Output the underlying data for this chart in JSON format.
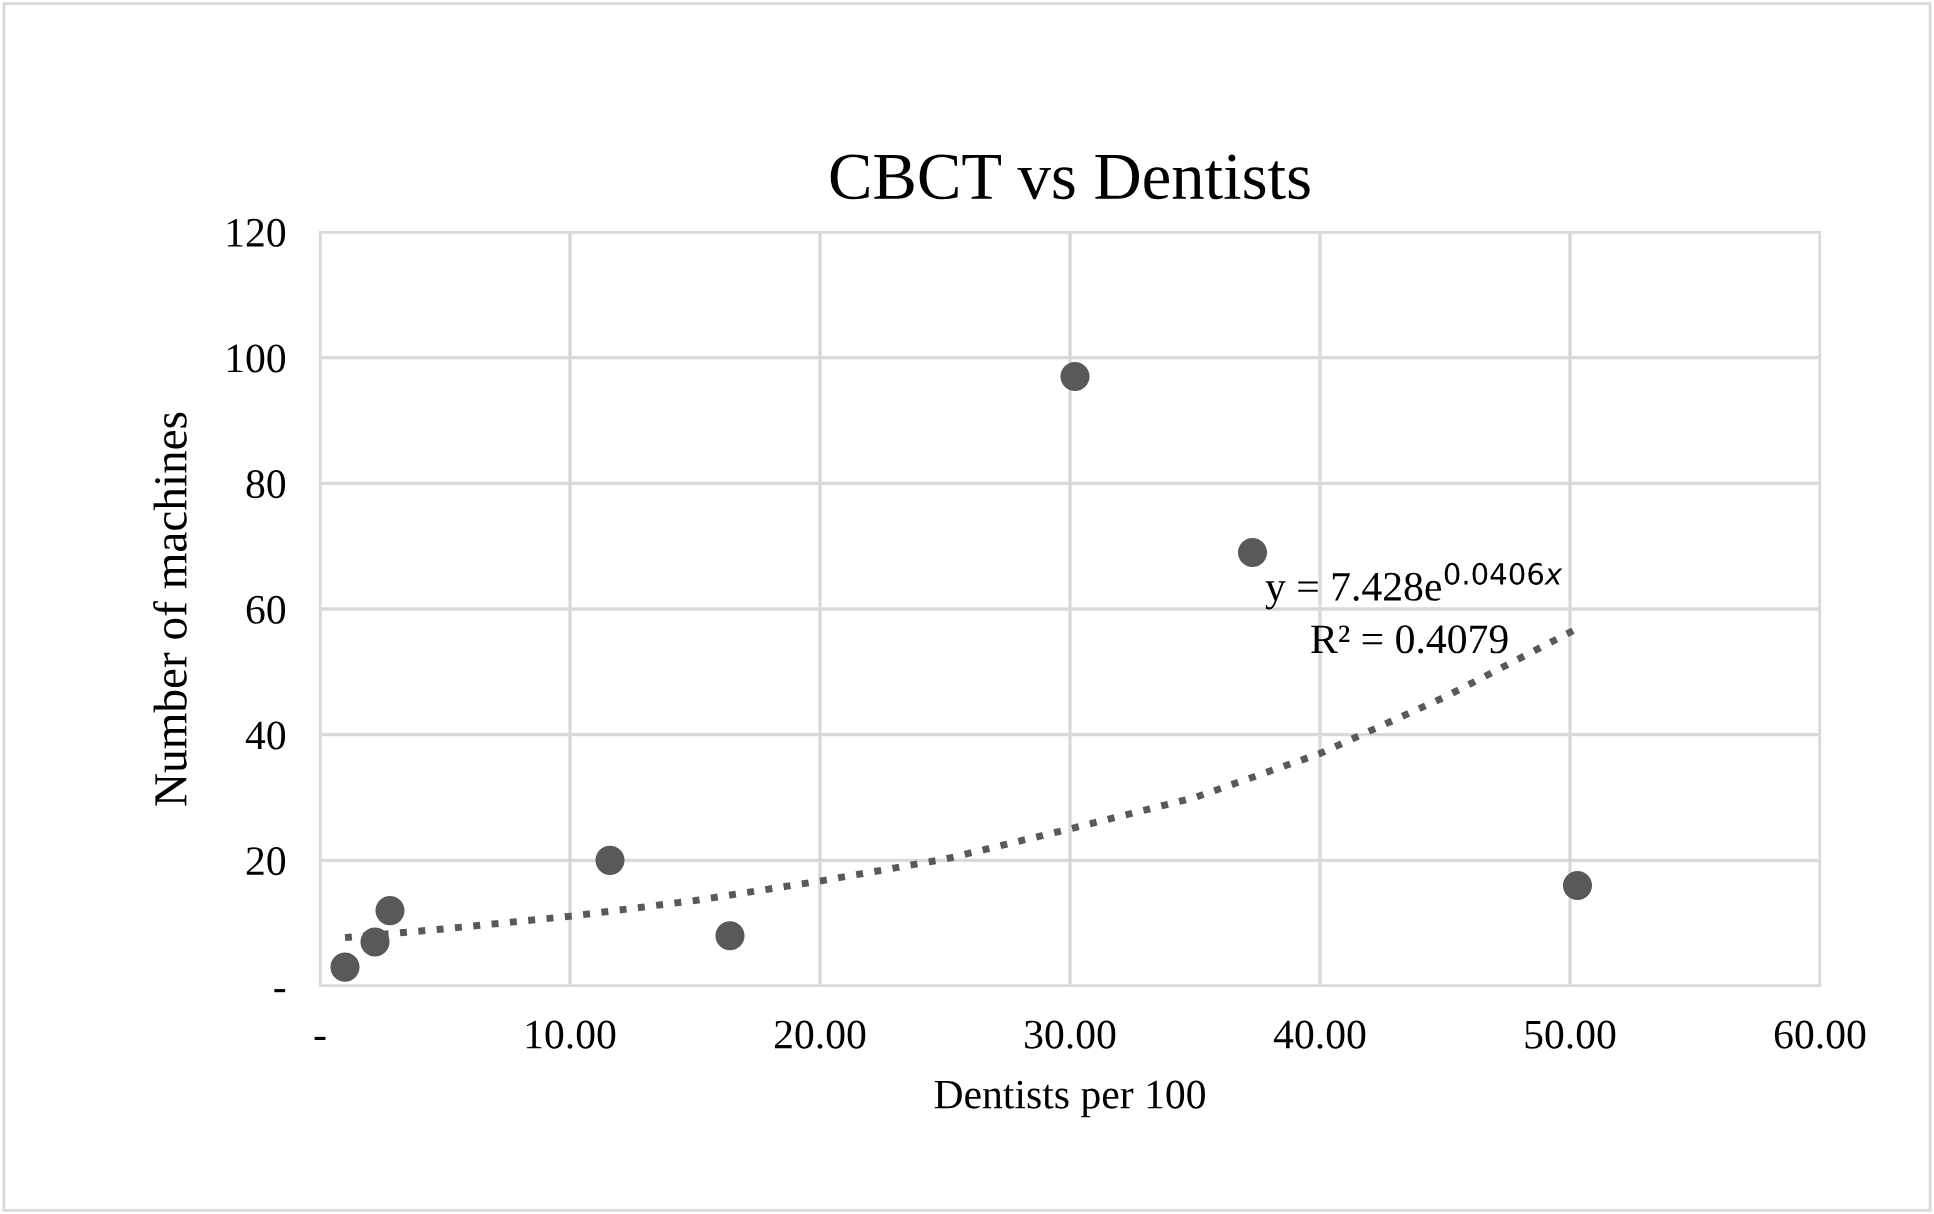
{
  "chart_data": {
    "type": "scatter",
    "title": "CBCT vs Dentists",
    "xlabel": "Dentists per 100",
    "ylabel": "Number of machines",
    "x": [
      1.0,
      2.2,
      2.8,
      11.6,
      16.4,
      30.2,
      37.3,
      50.3
    ],
    "values": [
      3,
      7,
      12,
      20,
      8,
      97,
      69,
      16
    ],
    "color": "#595959",
    "marker": "circle",
    "series": [
      {
        "type": "line",
        "x": [
          1,
          5,
          10,
          15,
          20,
          25,
          30,
          35,
          40,
          45,
          50.2
        ],
        "values": [
          7.7,
          9.1,
          11.1,
          13.6,
          16.7,
          20.2,
          25,
          30,
          37,
          46,
          56.7
        ],
        "color": "#595959",
        "line_style": "dotted",
        "marker": "none"
      }
    ],
    "annotations": [
      "y = 7.428e$^{0.0406x}$",
      "R² = 0.4079"
    ],
    "xlim": [
      0,
      60
    ],
    "xticks": [
      {
        "value": 0,
        "label": "-"
      },
      {
        "value": 10,
        "label": "10.00"
      },
      {
        "value": 20,
        "label": "20.00"
      },
      {
        "value": 30,
        "label": "30.00"
      },
      {
        "value": 40,
        "label": "40.00"
      },
      {
        "value": 50,
        "label": "50.00"
      },
      {
        "value": 60,
        "label": "60.00"
      }
    ],
    "ylim": [
      0,
      120
    ],
    "yticks": [
      {
        "value": 0,
        "label": "-"
      },
      20,
      40,
      60,
      80,
      100,
      120
    ],
    "grid": true
  }
}
